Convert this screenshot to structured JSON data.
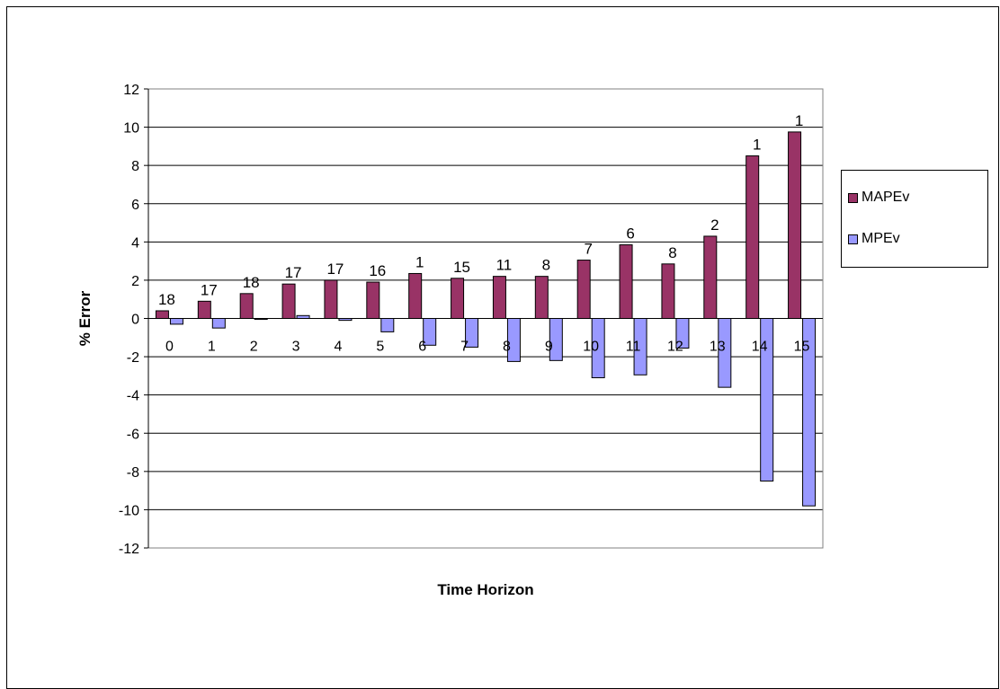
{
  "chart_data": {
    "type": "bar",
    "title": "",
    "xlabel": "Time Horizon",
    "ylabel": "% Error",
    "ylim": [
      -12,
      12
    ],
    "yticks": [
      12,
      10,
      8,
      6,
      4,
      2,
      0,
      -2,
      -4,
      -6,
      -8,
      -10,
      -12
    ],
    "grid": true,
    "legend_position": "right",
    "categories": [
      "0",
      "1",
      "2",
      "3",
      "4",
      "5",
      "6",
      "7",
      "8",
      "9",
      "10",
      "11",
      "12",
      "13",
      "14",
      "15"
    ],
    "series": [
      {
        "name": "MAPEv",
        "color": "#993366",
        "values": [
          0.4,
          0.9,
          1.3,
          1.8,
          2.0,
          1.9,
          2.35,
          2.1,
          2.2,
          2.2,
          3.05,
          3.85,
          2.85,
          4.3,
          8.5,
          9.75
        ]
      },
      {
        "name": "MPEv",
        "color": "#9999ff",
        "values": [
          -0.3,
          -0.5,
          -0.05,
          0.15,
          -0.1,
          -0.7,
          -1.4,
          -1.5,
          -2.25,
          -2.2,
          -3.1,
          -2.95,
          -1.55,
          -3.6,
          -8.5,
          -9.8
        ]
      }
    ],
    "bar_labels": [
      "18",
      "17",
      "18",
      "17",
      "17",
      "16",
      "1",
      "15",
      "11",
      "8",
      "7",
      "6",
      "8",
      "2",
      "1",
      "1"
    ]
  }
}
